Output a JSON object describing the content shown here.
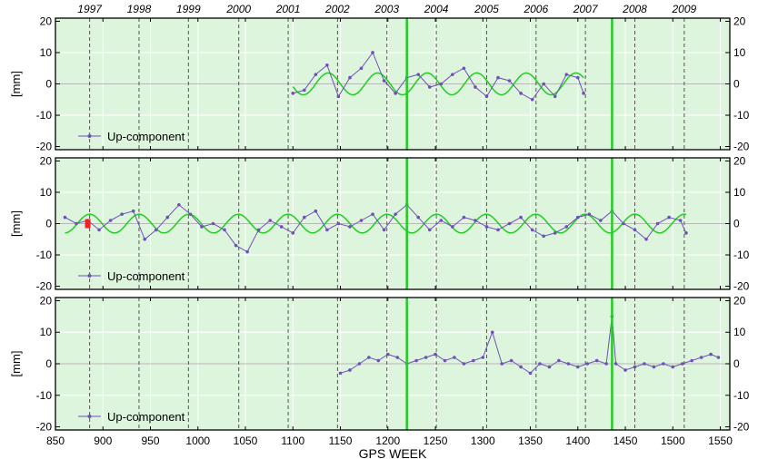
{
  "chart_data": {
    "type": "line",
    "xlabel": "GPS WEEK",
    "xlim": [
      850,
      1560
    ],
    "x_ticks": [
      850,
      900,
      950,
      1000,
      1050,
      1100,
      1150,
      1200,
      1250,
      1300,
      1350,
      1400,
      1450,
      1500,
      1550
    ],
    "years": [
      {
        "label": "1997",
        "week": 886
      },
      {
        "label": "1998",
        "week": 938
      },
      {
        "label": "1999",
        "week": 990
      },
      {
        "label": "2000",
        "week": 1043
      },
      {
        "label": "2001",
        "week": 1095
      },
      {
        "label": "2002",
        "week": 1147
      },
      {
        "label": "2003",
        "week": 1199
      },
      {
        "label": "2004",
        "week": 1251
      },
      {
        "label": "2005",
        "week": 1304
      },
      {
        "label": "2006",
        "week": 1356
      },
      {
        "label": "2007",
        "week": 1408
      },
      {
        "label": "2008",
        "week": 1460
      },
      {
        "label": "2009",
        "week": 1512
      }
    ],
    "grid": true,
    "colors": {
      "background": "#ddf5dd",
      "series": "#7050b8",
      "fit": "#22cc22",
      "break": "#22cc22",
      "marker": "#ee2222"
    },
    "panels": [
      {
        "ylabel": "[mm]",
        "ylim": [
          -21,
          21
        ],
        "y_ticks": [
          -20,
          -10,
          0,
          10,
          20
        ],
        "legend": "Up-component",
        "legend_position": "bottom-left",
        "series": {
          "name": "Up-component",
          "x": [
            1100,
            1112,
            1124,
            1136,
            1148,
            1160,
            1172,
            1184,
            1196,
            1208,
            1220,
            1232,
            1244,
            1256,
            1268,
            1280,
            1292,
            1304,
            1316,
            1328,
            1340,
            1352,
            1364,
            1376,
            1388,
            1400,
            1406
          ],
          "y": [
            -3,
            -2,
            3,
            6,
            -4,
            2,
            5,
            10,
            1,
            -3,
            2,
            3,
            -1,
            0,
            3,
            5,
            -1,
            -4,
            2,
            1,
            -3,
            -5,
            0,
            -4,
            3,
            2,
            -3
          ]
        },
        "fit": {
          "x_range": [
            1100,
            1406
          ],
          "amplitude": 3.5,
          "offset": 0,
          "phase_week": 1124,
          "period_weeks": 52.18
        },
        "breaks": [
          1220,
          1436
        ],
        "markers": []
      },
      {
        "ylabel": "[mm]",
        "ylim": [
          -21,
          21
        ],
        "y_ticks": [
          -20,
          -10,
          0,
          10,
          20
        ],
        "legend": "Up-component",
        "legend_position": "bottom-left",
        "series": {
          "name": "Up-component",
          "x": [
            860,
            872,
            884,
            896,
            908,
            920,
            932,
            944,
            956,
            968,
            980,
            992,
            1004,
            1016,
            1028,
            1040,
            1052,
            1064,
            1076,
            1088,
            1100,
            1112,
            1124,
            1136,
            1148,
            1160,
            1172,
            1184,
            1196,
            1208,
            1220,
            1232,
            1244,
            1256,
            1268,
            1280,
            1292,
            1304,
            1316,
            1328,
            1340,
            1352,
            1364,
            1376,
            1388,
            1400,
            1412,
            1424,
            1436,
            1448,
            1460,
            1472,
            1484,
            1496,
            1508,
            1514
          ],
          "y": [
            2,
            0,
            1,
            -2,
            1,
            3,
            4,
            -5,
            -2,
            2,
            6,
            3,
            -1,
            0,
            -2,
            -7,
            -9,
            -2,
            1,
            -1,
            -3,
            2,
            4,
            -2,
            0,
            -1,
            1,
            3,
            -2,
            3,
            6,
            2,
            -2,
            1,
            -1,
            2,
            1,
            -1,
            -2,
            0,
            2,
            -2,
            -4,
            -3,
            -1,
            2,
            3,
            1,
            4,
            0,
            -2,
            -5,
            0,
            2,
            1,
            -3
          ]
        },
        "fit": {
          "x_range": [
            860,
            1514
          ],
          "amplitude": 3,
          "offset": 0,
          "phase_week": 873,
          "period_weeks": 52.18
        },
        "breaks": [
          1220,
          1436
        ],
        "markers": [
          {
            "x": 884,
            "y": 0
          }
        ]
      },
      {
        "ylabel": "[mm]",
        "ylim": [
          -21,
          21
        ],
        "y_ticks": [
          -20,
          -10,
          0,
          10,
          20
        ],
        "legend": "Up-component",
        "legend_position": "bottom-left",
        "series": {
          "name": "Up-component",
          "x": [
            1150,
            1160,
            1170,
            1180,
            1190,
            1200,
            1210,
            1220,
            1230,
            1240,
            1250,
            1260,
            1270,
            1280,
            1290,
            1300,
            1310,
            1320,
            1330,
            1340,
            1350,
            1360,
            1370,
            1380,
            1390,
            1400,
            1410,
            1420,
            1430,
            1436,
            1440,
            1450,
            1460,
            1470,
            1480,
            1490,
            1500,
            1510,
            1520,
            1530,
            1540,
            1548
          ],
          "y": [
            -3,
            -2,
            0,
            2,
            1,
            3,
            2,
            0,
            1,
            2,
            3,
            1,
            2,
            0,
            1,
            2,
            10,
            0,
            1,
            -1,
            -3,
            0,
            -1,
            1,
            0,
            -1,
            0,
            1,
            0,
            15,
            0,
            -2,
            -1,
            0,
            -1,
            0,
            -1,
            0,
            1,
            2,
            3,
            2
          ]
        },
        "fit": null,
        "breaks": [
          1220,
          1436
        ],
        "markers": []
      }
    ]
  }
}
